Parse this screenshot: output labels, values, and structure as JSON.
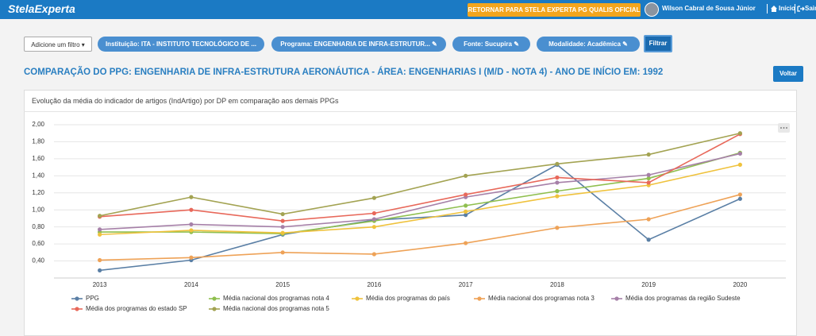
{
  "header": {
    "logo": "StelaExperta",
    "return_button": "RETORNAR PARA STELA EXPERTA PG QUALIS OFICIAL",
    "user": "Wilson Cabral de Sousa Júnior",
    "home": "Início",
    "logout": "Sair"
  },
  "filters": {
    "add_filter": "Adicione um filtro",
    "pills": [
      "Instituição: ITA - INSTITUTO TECNOLÓGICO DE ...",
      "Programa: ENGENHARIA DE INFRA-ESTRUTUR...",
      "Fonte: Sucupira",
      "Modalidade: Acadêmica"
    ],
    "apply": "Filtrar"
  },
  "page": {
    "title": "COMPARAÇÃO DO PPG: ENGENHARIA DE INFRA-ESTRUTURA AERONÁUTICA - ÁREA: ENGENHARIAS I (M/D - NOTA 4) - ANO DE INÍCIO EM: 1992",
    "back": "Voltar",
    "card_title": "Evolução da média do indicador de artigos (IndArtigo) por DP em comparação aos demais PPGs"
  },
  "chart_data": {
    "type": "line",
    "categories": [
      "2013",
      "2014",
      "2015",
      "2016",
      "2017",
      "2018",
      "2019",
      "2020"
    ],
    "ylim": [
      0.2,
      2.0
    ],
    "yticks": [
      {
        "value": 0.4,
        "label": "0,40"
      },
      {
        "value": 0.6,
        "label": "0,60"
      },
      {
        "value": 0.8,
        "label": "0,80"
      },
      {
        "value": 1.0,
        "label": "1,00"
      },
      {
        "value": 1.2,
        "label": "1,20"
      },
      {
        "value": 1.4,
        "label": "1,40"
      },
      {
        "value": 1.6,
        "label": "1,60"
      },
      {
        "value": 1.8,
        "label": "1,80"
      },
      {
        "value": 2.0,
        "label": "2,00"
      }
    ],
    "grid": true,
    "legend": "bottom",
    "series": [
      {
        "name": "PPG",
        "color": "#5a7fa5",
        "values": [
          0.29,
          0.41,
          0.71,
          0.88,
          0.94,
          1.53,
          0.65,
          1.13
        ]
      },
      {
        "name": "Média nacional dos programas nota 4",
        "color": "#8fbf4f",
        "values": [
          0.74,
          0.74,
          0.72,
          0.87,
          1.05,
          1.22,
          1.37,
          1.67
        ]
      },
      {
        "name": "Média dos programas do país",
        "color": "#efc23d",
        "values": [
          0.71,
          0.76,
          0.73,
          0.8,
          0.98,
          1.16,
          1.29,
          1.53
        ]
      },
      {
        "name": "Média nacional dos programas nota 3",
        "color": "#eea257",
        "values": [
          0.41,
          0.44,
          0.5,
          0.48,
          0.61,
          0.79,
          0.89,
          1.18
        ]
      },
      {
        "name": "Média dos programas da região Sudeste",
        "color": "#a680a8",
        "values": [
          0.77,
          0.83,
          0.8,
          0.89,
          1.15,
          1.32,
          1.41,
          1.66
        ]
      },
      {
        "name": "Média dos programas do estado SP",
        "color": "#e8685a",
        "values": [
          0.92,
          1.0,
          0.87,
          0.96,
          1.18,
          1.38,
          1.32,
          1.89
        ]
      },
      {
        "name": "Média nacional dos programas nota 5",
        "color": "#a3a352",
        "values": [
          0.93,
          1.15,
          0.95,
          1.14,
          1.4,
          1.54,
          1.65,
          1.9
        ]
      }
    ]
  }
}
